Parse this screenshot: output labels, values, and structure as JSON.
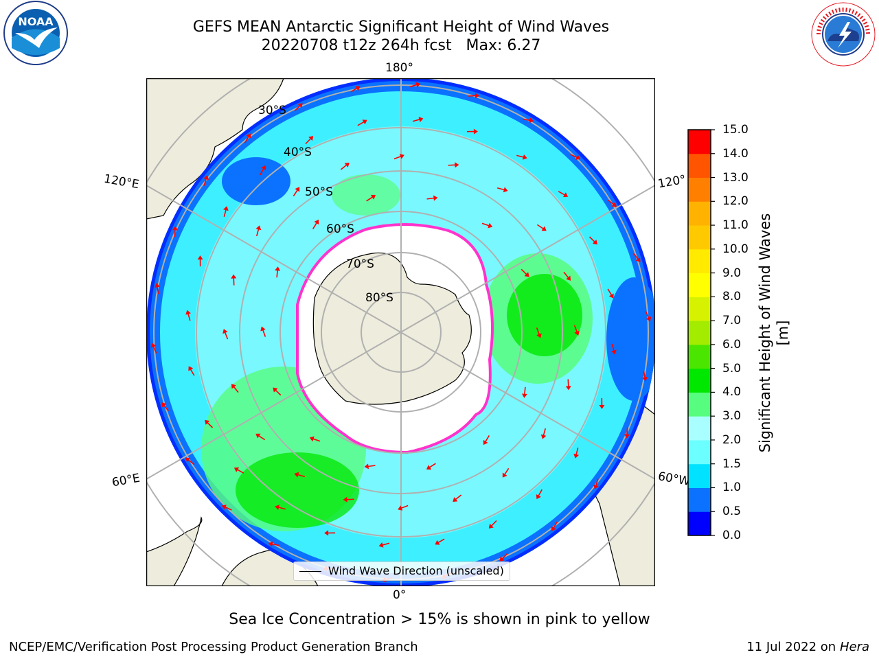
{
  "title": {
    "line1": "GEFS MEAN Antarctic Significant Height of Wind Waves",
    "line2": "20220708 t12z 264h fcst   Max: 6.27"
  },
  "logos": {
    "left": {
      "icon": "noaa-logo",
      "text": "NOAA"
    },
    "right": {
      "icon": "nws-logo",
      "text": "NATIONAL WEATHER SERVICE"
    }
  },
  "map": {
    "projection": "south-polar-stereographic",
    "longitude_labels": {
      "top": "180°",
      "bottom": "0°",
      "upper_left": "120°E",
      "upper_right": "120°",
      "lower_left": "60°E",
      "lower_right": "60°W"
    },
    "latitude_labels": [
      "30°S",
      "40°S",
      "50°S",
      "60°S",
      "70°S",
      "80°S"
    ],
    "legend_label": "Wind Wave Direction (unscaled)",
    "colors": {
      "land": "#eeecdc",
      "ice_edge": "#ff33cc",
      "arrows": "#ff0000"
    }
  },
  "colorbar": {
    "label": "Significant Height of Wind Waves [m]",
    "ticks": [
      "0.0",
      "0.5",
      "1.0",
      "1.5",
      "2.0",
      "3.0",
      "4.0",
      "5.0",
      "6.0",
      "7.0",
      "8.0",
      "9.0",
      "10.0",
      "11.0",
      "12.0",
      "13.0",
      "14.0",
      "15.0"
    ],
    "colors": [
      "#0000ff",
      "#0a72ff",
      "#00e2ff",
      "#6cffff",
      "#a9ffff",
      "#57fd7e",
      "#00e700",
      "#4be600",
      "#a3ec00",
      "#d6f200",
      "#ffff00",
      "#ffea00",
      "#ffc900",
      "#ffb200",
      "#ff7f00",
      "#ff5500",
      "#ff0000"
    ]
  },
  "bottom_caption": "Sea Ice Concentration > 15% is shown in pink to yellow",
  "footer": {
    "left": "NCEP/EMC/Verification Post Processing Product Generation Branch",
    "date": "11 Jul 2022 on ",
    "machine": "Hera"
  }
}
